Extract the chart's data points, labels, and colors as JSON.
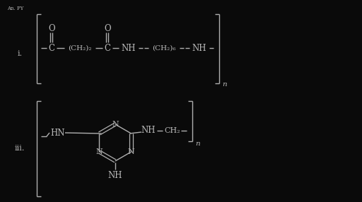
{
  "bg_color": "#0a0a0a",
  "text_color": "#b8b8b8",
  "line_color": "#b0b0b0",
  "figsize": [
    5.12,
    2.86
  ],
  "dpi": 100,
  "watermark": "An. PY",
  "label_i": "i.",
  "label_iii": "iii."
}
